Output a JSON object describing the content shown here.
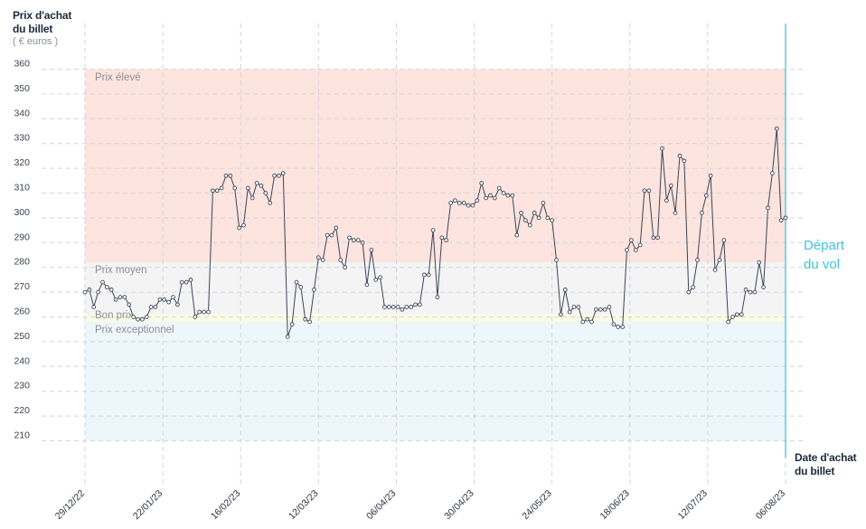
{
  "axis": {
    "y_title_line1": "Prix d'achat",
    "y_title_line2": "du billet",
    "y_unit": "( € euros )",
    "x_title_line1": "Date d'achat",
    "x_title_line2": "du billet",
    "departure_line1": "Départ",
    "departure_line2": "du vol"
  },
  "zones": {
    "high": "Prix élevé",
    "average": "Prix moyen",
    "good": "Bon prix",
    "exceptional": "Prix exceptionnel"
  },
  "colors": {
    "high_zone": "#fde4de",
    "average_zone": "#f4f4f5",
    "good_zone": "#fbfbe4",
    "exceptional_zone": "#edf7fb",
    "line": "#3b4457",
    "departure": "#3fc3dd"
  },
  "chart_data": {
    "type": "line",
    "ylim": [
      210,
      360
    ],
    "yticks": [
      210,
      220,
      230,
      240,
      250,
      260,
      270,
      280,
      290,
      300,
      310,
      320,
      330,
      340,
      350,
      360
    ],
    "xtick_labels": [
      "29/12/22",
      "22/01/23",
      "16/02/23",
      "12/03/23",
      "06/04/23",
      "30/04/23",
      "24/05/23",
      "18/06/23",
      "12/07/23",
      "06/08/23"
    ],
    "zones": [
      {
        "name": "Prix élevé",
        "from": 282,
        "to": 360
      },
      {
        "name": "Prix moyen",
        "from": 261,
        "to": 282
      },
      {
        "name": "Bon prix",
        "from": 258,
        "to": 261
      },
      {
        "name": "Prix exceptionnel",
        "from": 210,
        "to": 258
      }
    ],
    "x_start": "29/12/22",
    "x_end": "06/08/23",
    "series": [
      {
        "values": [
          270,
          271,
          264,
          270,
          274,
          272,
          271,
          267,
          268,
          268,
          265,
          260,
          259,
          259,
          260,
          264,
          264,
          267,
          267,
          266,
          268,
          265,
          274,
          274,
          275,
          260,
          262,
          262,
          262,
          311,
          311,
          312,
          317,
          317,
          312,
          296,
          297,
          312,
          308,
          314,
          313,
          310,
          306,
          317,
          317,
          318,
          252,
          257,
          274,
          272,
          259,
          258,
          271,
          284,
          283,
          293,
          293,
          296,
          283,
          280,
          292,
          291,
          291,
          290,
          273,
          287,
          275,
          276,
          264,
          264,
          264,
          264,
          263,
          264,
          264,
          265,
          265,
          277,
          277,
          295,
          268,
          292,
          291,
          306,
          307,
          306,
          306,
          305,
          305,
          307,
          314,
          308,
          309,
          308,
          312,
          310,
          309,
          309,
          293,
          302,
          299,
          297,
          302,
          300,
          306,
          300,
          299,
          283,
          261,
          271,
          262,
          264,
          264,
          258,
          259,
          258,
          263,
          263,
          263,
          264,
          257,
          256,
          256,
          287,
          291,
          287,
          289,
          311,
          311,
          292,
          292,
          328,
          307,
          313,
          302,
          325,
          323,
          270,
          272,
          283,
          302,
          309,
          317,
          279,
          283,
          291,
          258,
          260,
          261,
          261,
          271,
          270,
          270,
          282,
          272,
          304,
          318,
          336,
          299,
          300
        ]
      }
    ]
  }
}
